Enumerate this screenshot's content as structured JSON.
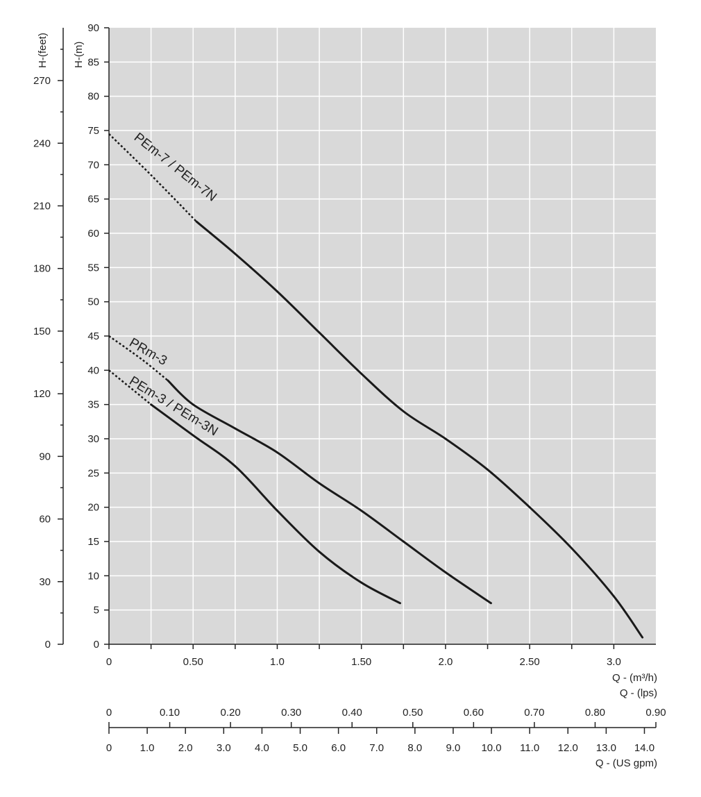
{
  "chart_data": {
    "type": "line",
    "title": "",
    "grid": true,
    "colors": {
      "plot_background": "#d9d9d9",
      "grid": "#ffffff",
      "curve": "#1a1a1a"
    },
    "x_axis": {
      "label": "Q - (m³/h)",
      "range": [
        0,
        3.25
      ],
      "ticks": [
        0,
        0.5,
        1.0,
        1.5,
        2.0,
        2.5,
        3.0
      ],
      "tick_labels": [
        "0",
        "0.50",
        "1.0",
        "1.50",
        "2.0",
        "2.50",
        "3.0"
      ]
    },
    "y_axis": {
      "label": "H-(m)",
      "range": [
        0,
        90
      ],
      "ticks": [
        0,
        5,
        10,
        15,
        20,
        25,
        30,
        35,
        40,
        45,
        50,
        55,
        60,
        65,
        70,
        75,
        80,
        85,
        90
      ],
      "tick_labels": [
        "0",
        "5",
        "10",
        "15",
        "20",
        "25",
        "30",
        "35",
        "40",
        "45",
        "50",
        "55",
        "60",
        "65",
        "70",
        "75",
        "80",
        "85",
        "90"
      ]
    },
    "y_axis_feet": {
      "label": "H-(feet)",
      "range": [
        0,
        295.3
      ],
      "ticks": [
        0,
        30,
        60,
        90,
        120,
        150,
        180,
        210,
        240,
        270
      ],
      "tick_labels": [
        "0",
        "30",
        "60",
        "90",
        "120",
        "150",
        "180",
        "210",
        "240",
        "270"
      ]
    },
    "x_axis_lps": {
      "label": "Q - (lps)",
      "range": [
        0,
        0.9
      ],
      "ticks": [
        0,
        0.1,
        0.2,
        0.3,
        0.4,
        0.5,
        0.6,
        0.7,
        0.8,
        0.9
      ],
      "tick_labels": [
        "0",
        "0.10",
        "0.20",
        "0.30",
        "0.40",
        "0.50",
        "0.60",
        "0.70",
        "0.80",
        "0.90"
      ]
    },
    "x_axis_gpm": {
      "label": "Q - (US gpm)",
      "range": [
        0,
        14.3
      ],
      "ticks": [
        0,
        1,
        2,
        3,
        4,
        5,
        6,
        7,
        8,
        9,
        10,
        11,
        12,
        13,
        14
      ],
      "tick_labels": [
        "0",
        "1.0",
        "2.0",
        "3.0",
        "4.0",
        "5.0",
        "6.0",
        "7.0",
        "8.0",
        "9.0",
        "10.0",
        "11.0",
        "12.0",
        "13.0",
        "14.0"
      ]
    },
    "series": [
      {
        "name": "PEm-7 / PEm-7N",
        "dashed_until": 0.52,
        "points": [
          [
            0,
            74.5
          ],
          [
            0.25,
            68.5
          ],
          [
            0.52,
            61.7
          ],
          [
            0.75,
            57
          ],
          [
            1.0,
            51.5
          ],
          [
            1.25,
            45.5
          ],
          [
            1.5,
            39.5
          ],
          [
            1.75,
            34
          ],
          [
            2.0,
            30
          ],
          [
            2.25,
            25.5
          ],
          [
            2.5,
            20
          ],
          [
            2.75,
            14
          ],
          [
            3.0,
            7
          ],
          [
            3.17,
            1
          ]
        ]
      },
      {
        "name": "PRm-3",
        "dashed_until": 0.35,
        "points": [
          [
            0,
            45
          ],
          [
            0.2,
            41.5
          ],
          [
            0.35,
            38.5
          ],
          [
            0.5,
            35
          ],
          [
            0.75,
            31.5
          ],
          [
            1.0,
            28
          ],
          [
            1.25,
            23.5
          ],
          [
            1.5,
            19.5
          ],
          [
            1.75,
            15
          ],
          [
            2.0,
            10.5
          ],
          [
            2.27,
            6
          ]
        ]
      },
      {
        "name": "PEm-3 / PEm-3N",
        "dashed_until": 0.25,
        "points": [
          [
            0,
            40
          ],
          [
            0.25,
            35
          ],
          [
            0.5,
            30.5
          ],
          [
            0.75,
            26
          ],
          [
            1.0,
            19.5
          ],
          [
            1.25,
            13.5
          ],
          [
            1.5,
            9
          ],
          [
            1.73,
            6
          ]
        ]
      }
    ]
  }
}
